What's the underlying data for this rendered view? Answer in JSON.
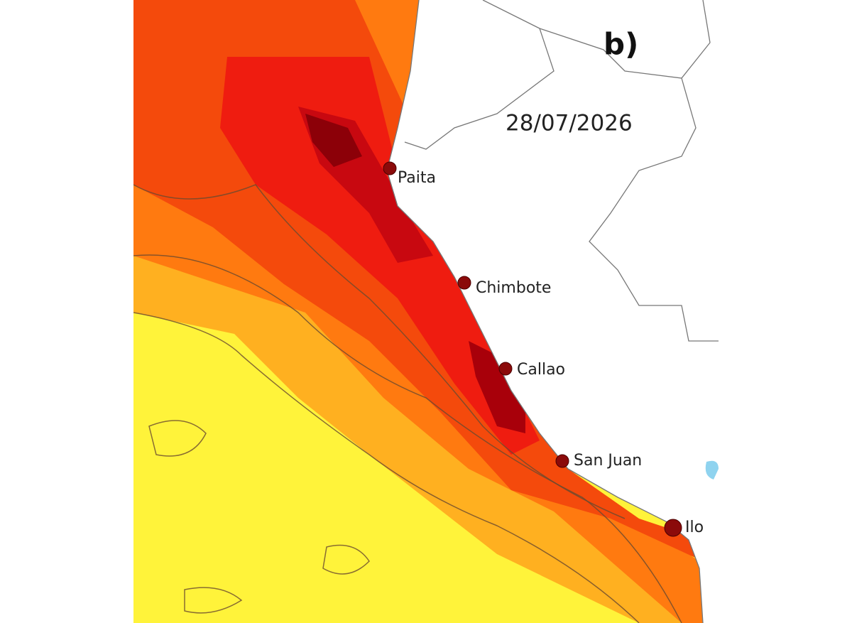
{
  "panel_label": "b)",
  "date": "28/07/2026",
  "cities": [
    {
      "label": "Paita"
    },
    {
      "label": "Chimbote"
    },
    {
      "label": "Callao"
    },
    {
      "label": "San Juan"
    },
    {
      "label": "Ilo"
    }
  ]
}
